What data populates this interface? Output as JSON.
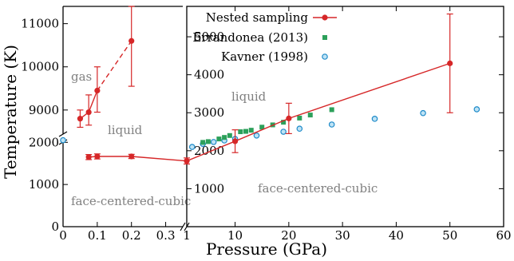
{
  "chart_data": {
    "type": "scatter",
    "xlabel": "Pressure (GPa)",
    "ylabel": "Temperature (K)",
    "colors": {
      "nested": "#d62728",
      "errandonea": "#2ca05a",
      "kavner": "#1f8bc9",
      "annotation": "#808080"
    },
    "legend": {
      "placement": "top-center",
      "entries": [
        {
          "label": "Nested sampling",
          "marker": "line-circle"
        },
        {
          "label": "Errandonea (2013)",
          "marker": "square"
        },
        {
          "label": "Kavner (1998)",
          "marker": "open-circle"
        }
      ]
    },
    "left_panel": {
      "xlim": [
        0,
        0.35
      ],
      "x_ticks": [
        0,
        0.1,
        0.2,
        0.3
      ],
      "x_tick_labels": [
        "0",
        "0.1",
        "0.2",
        "0.3"
      ],
      "y_ticks_lower": [
        0,
        1000,
        2000
      ],
      "y_tick_labels_lower": [
        "0",
        "1000",
        "2000"
      ],
      "y_ticks_upper": [
        9000,
        10000,
        11000
      ],
      "y_tick_labels_upper": [
        "9000",
        "10000",
        "11000"
      ],
      "lower_ylim": [
        0,
        2100
      ],
      "upper_ylim": [
        8350,
        11400
      ],
      "annotations": [
        "gas",
        "liquid",
        "face-centered-cubic"
      ],
      "boiling": {
        "x": [
          0.05,
          0.075,
          0.1,
          0.2
        ],
        "y": [
          8800,
          8950,
          9450,
          10600
        ],
        "yerr_low": [
          200,
          300,
          500,
          1050
        ],
        "yerr_high": [
          200,
          400,
          550,
          850
        ],
        "line_style": "solid-then-dashed"
      },
      "melting": {
        "x": [
          0.075,
          0.1,
          0.2
        ],
        "y": [
          1650,
          1665,
          1665
        ],
        "yerr": [
          60,
          60,
          50
        ]
      },
      "kavner_edge": {
        "x": [
          0
        ],
        "y": [
          2050
        ]
      }
    },
    "right_panel": {
      "xlim": [
        1,
        60
      ],
      "ylim": [
        0,
        5800
      ],
      "x_ticks": [
        1,
        10,
        20,
        30,
        40,
        50,
        60
      ],
      "x_tick_labels": [
        "1",
        "10",
        "20",
        "30",
        "40",
        "50",
        "60"
      ],
      "y_ticks": [
        1000,
        2000,
        3000,
        4000,
        5000
      ],
      "y_tick_labels": [
        "1000",
        "2000",
        "3000",
        "4000",
        "5000"
      ],
      "annotations": [
        "liquid",
        "face-centered-cubic"
      ],
      "series": [
        {
          "name": "Nested sampling",
          "x": [
            0.2,
            1,
            10,
            20,
            50
          ],
          "y": [
            1665,
            1730,
            2250,
            2850,
            4300
          ],
          "yerr": [
            50,
            80,
            300,
            400,
            1300
          ]
        },
        {
          "name": "Errandonea (2013)",
          "x": [
            4,
            5,
            7,
            8,
            9,
            11,
            12,
            13,
            15,
            17,
            19,
            22,
            24,
            28
          ],
          "y": [
            2220,
            2240,
            2310,
            2350,
            2400,
            2500,
            2510,
            2540,
            2620,
            2680,
            2750,
            2860,
            2940,
            3080
          ]
        },
        {
          "name": "Kavner (1998)",
          "x": [
            2,
            4,
            6,
            8,
            10,
            14,
            19,
            22,
            28,
            36,
            45,
            55
          ],
          "y": [
            2100,
            2180,
            2230,
            2270,
            2310,
            2400,
            2500,
            2580,
            2690,
            2840,
            2990,
            3090
          ]
        }
      ]
    }
  }
}
